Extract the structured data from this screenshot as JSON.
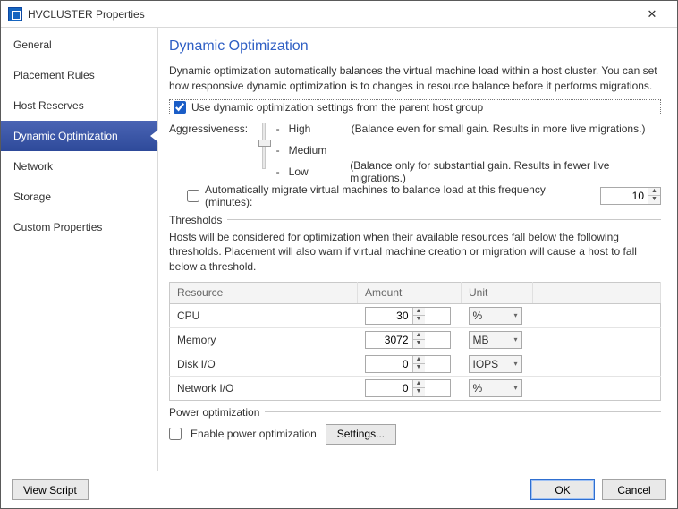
{
  "window": {
    "title": "HVCLUSTER Properties"
  },
  "sidebar": {
    "items": [
      {
        "label": "General"
      },
      {
        "label": "Placement Rules"
      },
      {
        "label": "Host Reserves"
      },
      {
        "label": "Dynamic Optimization"
      },
      {
        "label": "Network"
      },
      {
        "label": "Storage"
      },
      {
        "label": "Custom Properties"
      }
    ],
    "selected_index": 3
  },
  "page": {
    "title": "Dynamic Optimization",
    "description": "Dynamic optimization automatically balances the virtual machine load within a host cluster. You can set how responsive dynamic optimization is to changes in resource balance before it performs migrations.",
    "use_parent_checkbox": {
      "label": "Use dynamic optimization settings from the parent host group",
      "checked": true
    },
    "aggressiveness": {
      "label": "Aggressiveness:",
      "levels": [
        {
          "name": "High",
          "hint": "(Balance even for small gain.  Results in more live migrations.)"
        },
        {
          "name": "Medium",
          "hint": ""
        },
        {
          "name": "Low",
          "hint": "(Balance only for substantial gain.  Results in fewer live migrations.)"
        }
      ],
      "selected_level_index": 1
    },
    "auto_migrate": {
      "label": "Automatically migrate virtual machines to balance load at this frequency (minutes):",
      "checked": false,
      "value": 10
    },
    "thresholds": {
      "legend": "Thresholds",
      "description": "Hosts will be considered for optimization when their available resources fall below the following thresholds.  Placement will also warn if virtual machine creation or migration will cause a host to fall below a threshold.",
      "columns": {
        "resource": "Resource",
        "amount": "Amount",
        "unit": "Unit"
      },
      "rows": [
        {
          "resource": "CPU",
          "amount": 30,
          "unit": "%"
        },
        {
          "resource": "Memory",
          "amount": 3072,
          "unit": "MB"
        },
        {
          "resource": "Disk I/O",
          "amount": 0,
          "unit": "IOPS"
        },
        {
          "resource": "Network I/O",
          "amount": 0,
          "unit": "%"
        }
      ]
    },
    "power": {
      "legend": "Power optimization",
      "checkbox_label": "Enable power optimization",
      "checked": false,
      "settings_button": "Settings..."
    }
  },
  "footer": {
    "view_script": "View Script",
    "ok": "OK",
    "cancel": "Cancel"
  },
  "styling": {
    "accent_color": "#2f5fc4",
    "selected_sidebar_gradient": [
      "#4a64b4",
      "#2e4a9a"
    ],
    "border_color": "#c9c9c9",
    "header_bg": "#f4f4f4",
    "font_family": "Segoe UI",
    "font_size_pt": 9
  }
}
